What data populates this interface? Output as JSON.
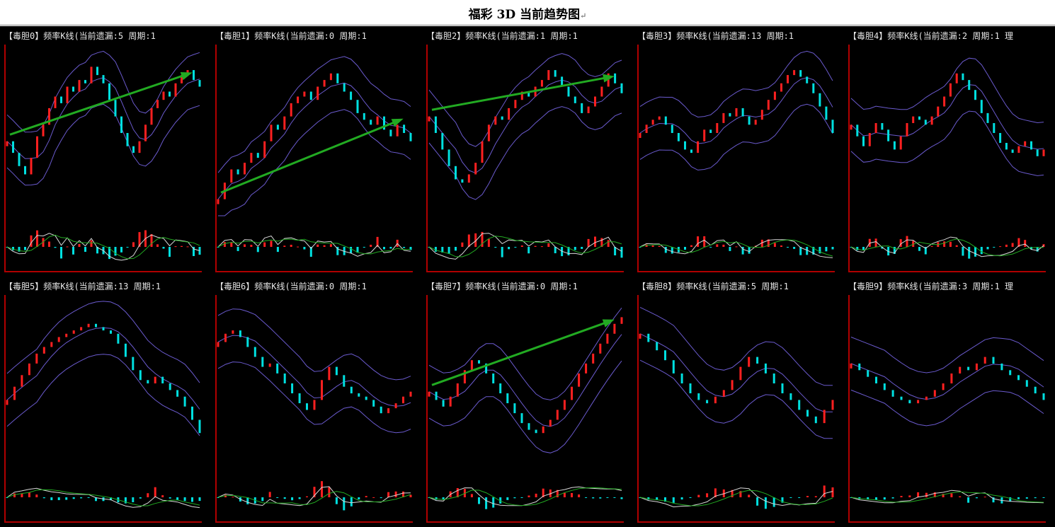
{
  "page": {
    "title": "福彩 3D 当前趋势图",
    "return_mark": "↵"
  },
  "colors": {
    "background": "#000000",
    "up_candle": "#ff2020",
    "down_candle": "#00e0e0",
    "band": "#6a5acd",
    "frame": "#b00000",
    "dif_line": "#d8d8d8",
    "dea_line": "#22aa22",
    "arrow": "#22aa22"
  },
  "panels": [
    {
      "header": "【毒胆0】频率K线(当前遗漏:5 周期:1",
      "trend_arrow": true,
      "closes": [
        0.45,
        0.38,
        0.3,
        0.25,
        0.35,
        0.48,
        0.55,
        0.65,
        0.72,
        0.68,
        0.78,
        0.75,
        0.82,
        0.8,
        0.9,
        0.85,
        0.8,
        0.7,
        0.6,
        0.5,
        0.42,
        0.38,
        0.45,
        0.55,
        0.65,
        0.7,
        0.75,
        0.72,
        0.8,
        0.85,
        0.88,
        0.82,
        0.78
      ]
    },
    {
      "header": "【毒胆1】频率K线(当前遗漏:0 周期:1",
      "trend_arrow": true,
      "closes": [
        0.1,
        0.2,
        0.28,
        0.25,
        0.32,
        0.38,
        0.35,
        0.45,
        0.55,
        0.52,
        0.6,
        0.68,
        0.72,
        0.75,
        0.7,
        0.78,
        0.82,
        0.86,
        0.8,
        0.75,
        0.7,
        0.62,
        0.58,
        0.55,
        0.6,
        0.52,
        0.48,
        0.55,
        0.5,
        0.45
      ]
    },
    {
      "header": "【毒胆2】频率K线(当前遗漏:1 周期:1",
      "trend_arrow": true,
      "closes": [
        0.6,
        0.5,
        0.4,
        0.3,
        0.22,
        0.2,
        0.25,
        0.32,
        0.45,
        0.55,
        0.6,
        0.58,
        0.65,
        0.7,
        0.75,
        0.72,
        0.78,
        0.82,
        0.88,
        0.84,
        0.78,
        0.72,
        0.68,
        0.62,
        0.66,
        0.72,
        0.78,
        0.86,
        0.8,
        0.74
      ]
    },
    {
      "header": "【毒胆3】频率K线(当前遗漏:13 周期:1",
      "trend_arrow": false,
      "closes": [
        0.5,
        0.55,
        0.58,
        0.6,
        0.55,
        0.5,
        0.45,
        0.4,
        0.38,
        0.45,
        0.52,
        0.5,
        0.56,
        0.62,
        0.6,
        0.65,
        0.6,
        0.55,
        0.58,
        0.64,
        0.7,
        0.75,
        0.8,
        0.85,
        0.88,
        0.84,
        0.8,
        0.74,
        0.66,
        0.58,
        0.5
      ]
    },
    {
      "header": "【毒胆4】频率K线(当前遗漏:2 周期:1 理",
      "trend_arrow": false,
      "closes": [
        0.55,
        0.48,
        0.42,
        0.5,
        0.56,
        0.52,
        0.45,
        0.4,
        0.48,
        0.56,
        0.6,
        0.58,
        0.55,
        0.6,
        0.66,
        0.72,
        0.8,
        0.86,
        0.82,
        0.76,
        0.7,
        0.62,
        0.56,
        0.5,
        0.44,
        0.4,
        0.38,
        0.42,
        0.45,
        0.4,
        0.36,
        0.4
      ]
    },
    {
      "header": "【毒胆5】频率K线(当前遗漏:13 周期:1",
      "trend_arrow": false,
      "closes": [
        0.4,
        0.48,
        0.55,
        0.62,
        0.68,
        0.72,
        0.75,
        0.78,
        0.8,
        0.82,
        0.84,
        0.86,
        0.84,
        0.82,
        0.8,
        0.74,
        0.66,
        0.58,
        0.52,
        0.5,
        0.54,
        0.5,
        0.46,
        0.42,
        0.36,
        0.28,
        0.2
      ]
    },
    {
      "header": "【毒胆6】频率K线(当前遗漏:0 周期:1",
      "trend_arrow": false,
      "closes": [
        0.75,
        0.8,
        0.82,
        0.78,
        0.72,
        0.66,
        0.6,
        0.62,
        0.56,
        0.5,
        0.44,
        0.38,
        0.34,
        0.4,
        0.52,
        0.6,
        0.55,
        0.48,
        0.44,
        0.42,
        0.4,
        0.36,
        0.32,
        0.35,
        0.38,
        0.42,
        0.45
      ]
    },
    {
      "header": "【毒胆7】频率K线(当前遗漏:0 周期:1",
      "trend_arrow": true,
      "closes": [
        0.45,
        0.4,
        0.36,
        0.42,
        0.5,
        0.58,
        0.64,
        0.62,
        0.56,
        0.5,
        0.44,
        0.38,
        0.32,
        0.26,
        0.22,
        0.2,
        0.24,
        0.28,
        0.34,
        0.4,
        0.48,
        0.56,
        0.62,
        0.68,
        0.74,
        0.8,
        0.86,
        0.9
      ]
    },
    {
      "header": "【毒胆8】频率K线(当前遗漏:5 周期:1",
      "trend_arrow": false,
      "closes": [
        0.8,
        0.75,
        0.7,
        0.64,
        0.56,
        0.5,
        0.44,
        0.4,
        0.38,
        0.42,
        0.46,
        0.52,
        0.6,
        0.66,
        0.62,
        0.56,
        0.5,
        0.44,
        0.4,
        0.34,
        0.3,
        0.26,
        0.34,
        0.4
      ]
    },
    {
      "header": "【毒胆9】频率K线(当前遗漏:3 周期:1 理",
      "trend_arrow": false,
      "closes": [
        0.62,
        0.58,
        0.54,
        0.5,
        0.46,
        0.42,
        0.4,
        0.38,
        0.4,
        0.42,
        0.46,
        0.5,
        0.56,
        0.6,
        0.58,
        0.62,
        0.66,
        0.62,
        0.58,
        0.55,
        0.52,
        0.48,
        0.44,
        0.4
      ]
    }
  ]
}
